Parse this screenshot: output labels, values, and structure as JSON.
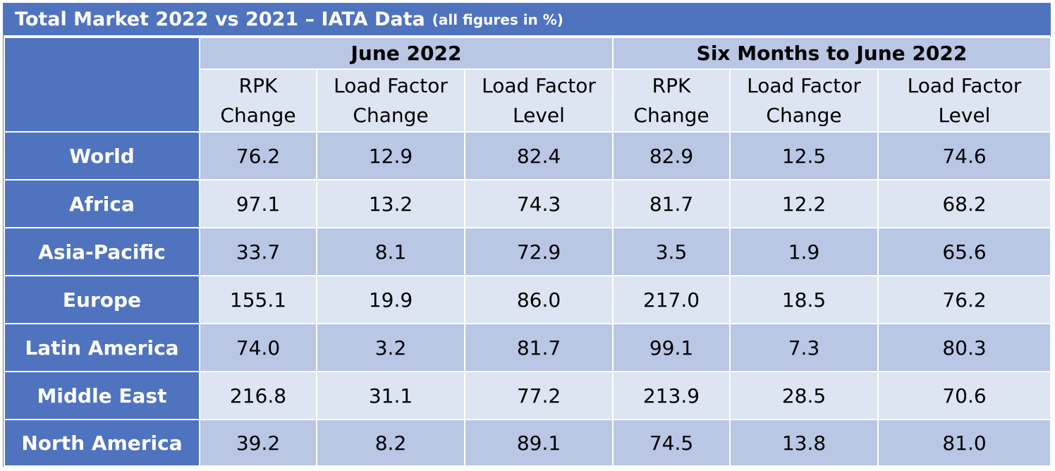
{
  "title": {
    "main": "Total Market 2022 vs 2021 – IATA Data",
    "sub": "(all figures in %)"
  },
  "groups": [
    "June 2022",
    "Six Months to June 2022"
  ],
  "columns": [
    {
      "line1": "RPK",
      "line2": "Change"
    },
    {
      "line1": "Load Factor",
      "line2": "Change"
    },
    {
      "line1": "Load Factor",
      "line2": "Level"
    },
    {
      "line1": "RPK",
      "line2": "Change"
    },
    {
      "line1": "Load Factor",
      "line2": "Change"
    },
    {
      "line1": "Load Factor",
      "line2": "Level"
    }
  ],
  "rows": [
    {
      "region": "World",
      "values": [
        "76.2",
        "12.9",
        "82.4",
        "82.9",
        "12.5",
        "74.6"
      ]
    },
    {
      "region": "Africa",
      "values": [
        "97.1",
        "13.2",
        "74.3",
        "81.7",
        "12.2",
        "68.2"
      ]
    },
    {
      "region": "Asia-Pacific",
      "values": [
        "33.7",
        "8.1",
        "72.9",
        "3.5",
        "1.9",
        "65.6"
      ]
    },
    {
      "region": "Europe",
      "values": [
        "155.1",
        "19.9",
        "86.0",
        "217.0",
        "18.5",
        "76.2"
      ]
    },
    {
      "region": "Latin America",
      "values": [
        "74.0",
        "3.2",
        "81.7",
        "99.1",
        "7.3",
        "80.3"
      ]
    },
    {
      "region": "Middle East",
      "values": [
        "216.8",
        "31.1",
        "77.2",
        "213.9",
        "28.5",
        "70.6"
      ]
    },
    {
      "region": "North America",
      "values": [
        "39.2",
        "8.2",
        "89.1",
        "74.5",
        "13.8",
        "81.0"
      ]
    }
  ],
  "colors": {
    "header_blue": "#4f73be",
    "band_dark": "#b9c6e4",
    "band_light": "#dde4f2"
  }
}
